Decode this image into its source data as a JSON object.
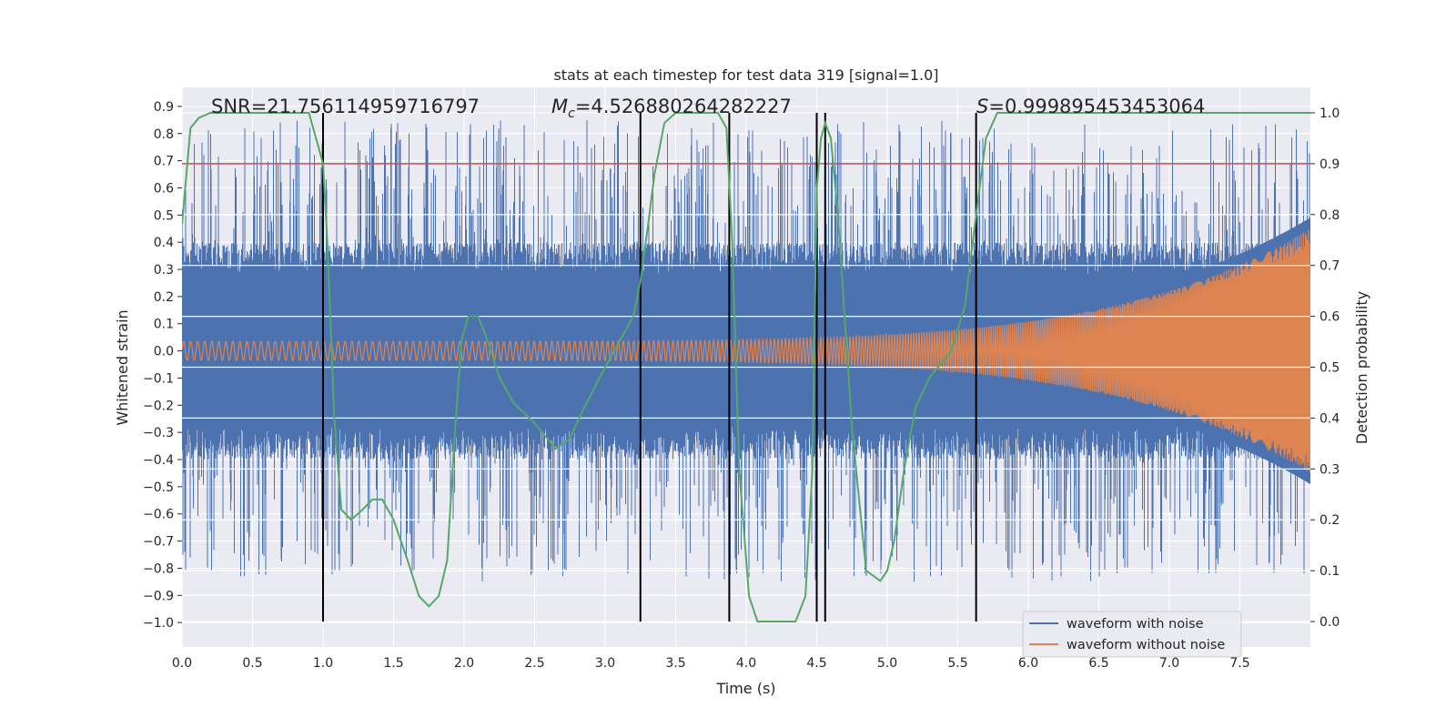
{
  "chart_data": {
    "type": "line",
    "title": "stats at each timestep for test data 319 [signal=1.0]",
    "xlabel": "Time (s)",
    "ylabel_left": "Whitened strain",
    "ylabel_right": "Detection probability",
    "xlim": [
      0.0,
      8.0
    ],
    "ylim_left": [
      -1.09,
      0.97
    ],
    "ylim_right": [
      -0.05,
      1.05
    ],
    "x_ticks": [
      0.0,
      0.5,
      1.0,
      1.5,
      2.0,
      2.5,
      3.0,
      3.5,
      4.0,
      4.5,
      5.0,
      5.5,
      6.0,
      6.5,
      7.0,
      7.5
    ],
    "x_tick_labels": [
      "0.0",
      "0.5",
      "1.0",
      "1.5",
      "2.0",
      "2.5",
      "3.0",
      "3.5",
      "4.0",
      "4.5",
      "5.0",
      "5.5",
      "6.0",
      "6.5",
      "7.0",
      "7.5"
    ],
    "y_left_ticks": [
      0.9,
      0.8,
      0.7,
      0.6,
      0.5,
      0.4,
      0.3,
      0.2,
      0.1,
      0.0,
      -0.1,
      -0.2,
      -0.3,
      -0.4,
      -0.5,
      -0.6,
      -0.7,
      -0.8,
      -0.9,
      -1.0
    ],
    "y_left_tick_labels": [
      "0.9",
      "0.8",
      "0.7",
      "0.6",
      "0.5",
      "0.4",
      "0.3",
      "0.2",
      "0.1",
      "0.0",
      "−0.1",
      "−0.2",
      "−0.3",
      "−0.4",
      "−0.5",
      "−0.6",
      "−0.7",
      "−0.8",
      "−0.9",
      "−1.0"
    ],
    "y_right_ticks": [
      1.0,
      0.9,
      0.8,
      0.7,
      0.6,
      0.5,
      0.4,
      0.3,
      0.2,
      0.1,
      0.0
    ],
    "y_right_tick_labels": [
      "1.0",
      "0.9",
      "0.8",
      "0.7",
      "0.6",
      "0.5",
      "0.4",
      "0.3",
      "0.2",
      "0.1",
      "0.0"
    ],
    "annotations": {
      "snr": "SNR=21.756114959716797",
      "mc_symbol": "M",
      "mc_subscript": "c",
      "mc_value": "=4.526880264282227",
      "s_symbol": "S",
      "s_value": "=0.999895453453064"
    },
    "threshold": {
      "value": 0.9,
      "axis": "right",
      "color": "#c44e52"
    },
    "vertical_lines": [
      1.0,
      3.25,
      3.88,
      4.5,
      4.56,
      5.63
    ],
    "series": [
      {
        "name": "waveform with noise",
        "color": "#4c72b0",
        "axis": "left",
        "kind": "noisy strain",
        "core_band": 0.28,
        "peak_extent": 0.85
      },
      {
        "name": "waveform without noise",
        "color": "#dd8452",
        "axis": "left",
        "kind": "chirp",
        "amplitude_start": 0.035,
        "amplitude_end": 0.45
      },
      {
        "name": "detection probability",
        "color": "#55a868",
        "axis": "right",
        "x": [
          0.0,
          0.06,
          0.12,
          0.2,
          0.3,
          0.6,
          0.9,
          1.0,
          1.03,
          1.08,
          1.13,
          1.2,
          1.28,
          1.35,
          1.42,
          1.5,
          1.6,
          1.68,
          1.75,
          1.82,
          1.88,
          1.93,
          1.98,
          2.03,
          2.1,
          2.17,
          2.25,
          2.35,
          2.5,
          2.65,
          2.75,
          2.85,
          3.0,
          3.1,
          3.2,
          3.25,
          3.3,
          3.35,
          3.42,
          3.5,
          3.6,
          3.8,
          3.86,
          3.9,
          3.95,
          4.02,
          4.08,
          4.2,
          4.35,
          4.42,
          4.47,
          4.5,
          4.53,
          4.56,
          4.6,
          4.65,
          4.75,
          4.85,
          4.95,
          5.0,
          5.05,
          5.12,
          5.2,
          5.3,
          5.45,
          5.55,
          5.63,
          5.7,
          5.78,
          6.0,
          7.0,
          8.0
        ],
        "y": [
          0.78,
          0.97,
          0.99,
          1.0,
          1.0,
          1.0,
          1.0,
          0.9,
          0.75,
          0.4,
          0.22,
          0.2,
          0.22,
          0.24,
          0.24,
          0.2,
          0.12,
          0.05,
          0.03,
          0.05,
          0.12,
          0.35,
          0.55,
          0.6,
          0.6,
          0.55,
          0.48,
          0.43,
          0.39,
          0.34,
          0.36,
          0.42,
          0.5,
          0.55,
          0.6,
          0.67,
          0.77,
          0.88,
          0.98,
          1.0,
          1.0,
          1.0,
          0.97,
          0.75,
          0.3,
          0.05,
          0.0,
          0.0,
          0.0,
          0.05,
          0.3,
          0.85,
          0.95,
          0.98,
          0.95,
          0.8,
          0.38,
          0.1,
          0.08,
          0.1,
          0.16,
          0.3,
          0.42,
          0.48,
          0.53,
          0.62,
          0.8,
          0.95,
          1.0,
          1.0,
          1.0,
          1.0
        ]
      }
    ],
    "legend_position": "bottom-right"
  }
}
